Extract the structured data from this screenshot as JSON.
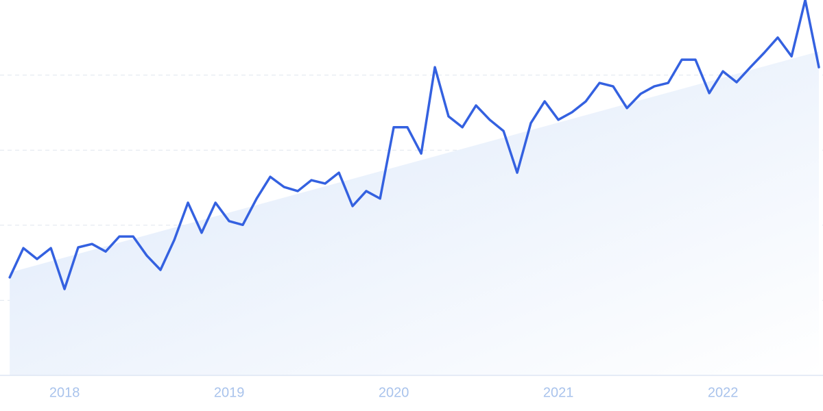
{
  "chart_data": {
    "type": "line",
    "x": [
      2017.667,
      2017.75,
      2017.833,
      2017.917,
      2018,
      2018.083,
      2018.167,
      2018.25,
      2018.333,
      2018.417,
      2018.5,
      2018.583,
      2018.667,
      2018.75,
      2018.833,
      2018.917,
      2019,
      2019.083,
      2019.167,
      2019.25,
      2019.333,
      2019.417,
      2019.5,
      2019.583,
      2019.667,
      2019.75,
      2019.833,
      2019.917,
      2020,
      2020.083,
      2020.167,
      2020.25,
      2020.333,
      2020.417,
      2020.5,
      2020.583,
      2020.667,
      2020.75,
      2020.833,
      2020.917,
      2021,
      2021.083,
      2021.167,
      2021.25,
      2021.333,
      2021.417,
      2021.5,
      2021.583,
      2021.667,
      2021.75,
      2021.833,
      2021.917,
      2022,
      2022.083,
      2022.167,
      2022.25,
      2022.333,
      2022.417,
      2022.5,
      2022.583
    ],
    "series": [
      {
        "color": "#3461e0",
        "values": [
          26.1,
          33.9,
          31.0,
          33.9,
          23.0,
          34.1,
          35.0,
          33.0,
          37.0,
          37.0,
          31.9,
          28.1,
          36.1,
          46.0,
          38.0,
          46.0,
          41.1,
          40.1,
          47.1,
          52.9,
          50.2,
          49.1,
          52.0,
          51.1,
          54.0,
          45.1,
          49.1,
          47.1,
          66.1,
          66.1,
          59.1,
          82.1,
          69.0,
          66.1,
          71.9,
          68.1,
          65.1,
          54.0,
          67.2,
          73.0,
          68.1,
          70.1,
          73.0,
          77.9,
          77.0,
          71.2,
          75.0,
          77.0,
          77.9,
          84.1,
          84.1,
          75.2,
          81.0,
          78.1,
          82.1,
          85.9,
          90.0,
          85.0,
          100,
          82.1
        ]
      }
    ],
    "trend": {
      "color": "#dce8fa",
      "values": [
        27.4,
        86.3
      ]
    },
    "xlim": [
      2017.608,
      2022.608
    ],
    "xticks": [
      2018,
      2019,
      2020,
      2021,
      2022
    ],
    "ylim": [
      0,
      100
    ],
    "yticks": [
      20,
      40,
      60,
      80
    ],
    "show_ytick_labels": false,
    "grid": true
  }
}
